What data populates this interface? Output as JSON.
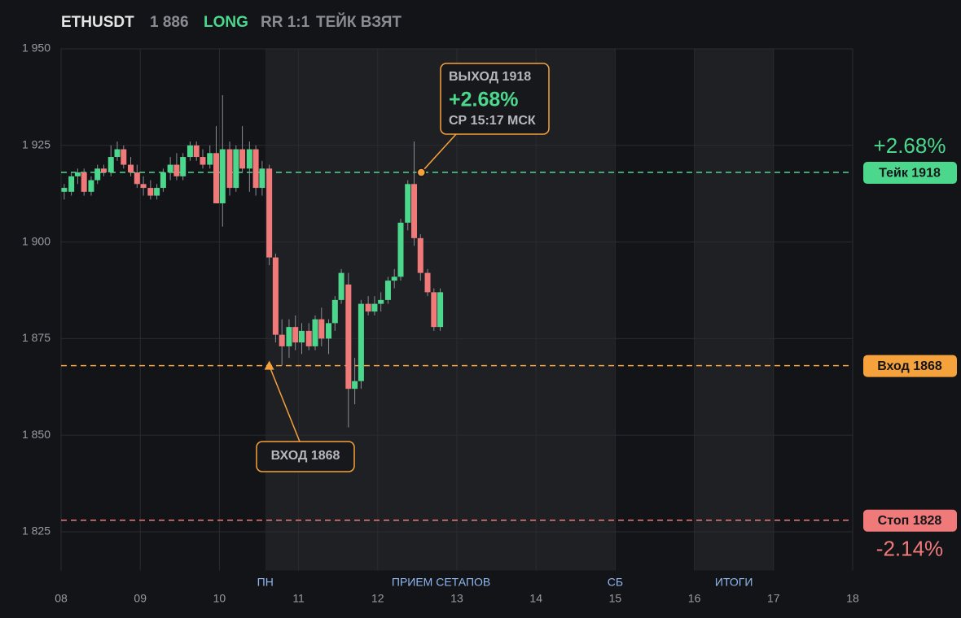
{
  "chart_data": {
    "type": "candlestick",
    "header": {
      "symbol": "ETHUSDT",
      "price": {
        "value": 1886,
        "label": "1 886"
      },
      "side": "LONG",
      "rr": "RR 1:1",
      "status": "ТЕЙК ВЗЯТ"
    },
    "x": [
      8.04,
      8.13,
      8.21,
      8.29,
      8.38,
      8.46,
      8.54,
      8.63,
      8.71,
      8.79,
      8.88,
      8.96,
      9.04,
      9.13,
      9.21,
      9.29,
      9.38,
      9.46,
      9.54,
      9.63,
      9.71,
      9.79,
      9.88,
      9.96,
      10.04,
      10.13,
      10.21,
      10.29,
      10.38,
      10.46,
      10.54,
      10.63,
      10.71,
      10.79,
      10.88,
      10.96,
      11.04,
      11.13,
      11.21,
      11.29,
      11.38,
      11.46,
      11.54,
      11.63,
      11.71,
      11.79,
      11.88,
      11.96,
      12.04,
      12.13,
      12.21,
      12.29,
      12.38,
      12.46,
      12.54,
      12.63,
      12.71,
      12.79
    ],
    "open": [
      1913,
      1913,
      1917,
      1918,
      1913,
      1916,
      1919,
      1918,
      1922,
      1924,
      1920,
      1918,
      1915,
      1914,
      1912,
      1914,
      1918,
      1920,
      1917,
      1922,
      1925,
      1922,
      1920,
      1923,
      1910,
      1924,
      1914,
      1924,
      1919,
      1924,
      1914,
      1919,
      1896,
      1876,
      1873,
      1878,
      1874,
      1877,
      1873,
      1880,
      1875,
      1879,
      1885,
      1889,
      1862,
      1864,
      1884,
      1882,
      1884,
      1885,
      1890,
      1891,
      1905,
      1915,
      1901,
      1892,
      1887,
      1878
    ],
    "high": [
      1915,
      1918,
      1919,
      1919,
      1917,
      1920,
      1920,
      1925,
      1926,
      1925,
      1922,
      1920,
      1917,
      1916,
      1915,
      1919,
      1922,
      1923,
      1923,
      1926,
      1926,
      1924,
      1925,
      1930,
      1938,
      1926,
      1925,
      1930,
      1926,
      1925,
      1921,
      1920,
      1897,
      1880,
      1880,
      1881,
      1879,
      1879,
      1881,
      1883,
      1880,
      1886,
      1893,
      1892,
      1870,
      1885,
      1886,
      1886,
      1887,
      1891,
      1893,
      1906,
      1916,
      1926,
      1902,
      1893,
      1888,
      1888
    ],
    "low": [
      1911,
      1912,
      1915,
      1912,
      1912,
      1915,
      1917,
      1917,
      1921,
      1919,
      1917,
      1914,
      1912,
      1911,
      1911,
      1913,
      1916,
      1916,
      1916,
      1921,
      1921,
      1919,
      1919,
      1910,
      1904,
      1912,
      1913,
      1918,
      1913,
      1912,
      1912,
      1894,
      1874,
      1868,
      1870,
      1872,
      1871,
      1872,
      1872,
      1873,
      1871,
      1877,
      1884,
      1852,
      1858,
      1862,
      1881,
      1881,
      1882,
      1884,
      1888,
      1890,
      1903,
      1899,
      1890,
      1886,
      1877,
      1877
    ],
    "close": [
      1914,
      1917,
      1918,
      1913,
      1916,
      1919,
      1918,
      1922,
      1924,
      1920,
      1918,
      1915,
      1914,
      1912,
      1914,
      1918,
      1920,
      1917,
      1922,
      1925,
      1922,
      1920,
      1923,
      1910,
      1924,
      1914,
      1924,
      1919,
      1924,
      1914,
      1919,
      1896,
      1876,
      1873,
      1878,
      1874,
      1877,
      1873,
      1880,
      1875,
      1879,
      1885,
      1892,
      1862,
      1864,
      1884,
      1882,
      1884,
      1885,
      1890,
      1891,
      1905,
      1915,
      1901,
      1892,
      1887,
      1878,
      1887
    ],
    "up_color": "#4cd88c",
    "down_color": "#f07a7a",
    "xlim": [
      8,
      18
    ],
    "xticks": [
      {
        "value": 8,
        "label": "08"
      },
      {
        "value": 9,
        "label": "09"
      },
      10,
      11,
      12,
      13,
      14,
      15,
      16,
      17,
      18
    ],
    "ylim": [
      1815,
      1950
    ],
    "yticks": [
      {
        "value": 1825,
        "label": "1 825"
      },
      {
        "value": 1850,
        "label": "1 850"
      },
      {
        "value": 1875,
        "label": "1 875"
      },
      {
        "value": 1900,
        "label": "1 900"
      },
      {
        "value": 1925,
        "label": "1 925"
      },
      {
        "value": 1950,
        "label": "1 950"
      }
    ],
    "grid": true,
    "bands": [
      {
        "from": 10.58,
        "to": 15
      },
      {
        "from": 16,
        "to": 17
      }
    ],
    "session_labels": [
      {
        "x": 10.58,
        "label": "ПН"
      },
      {
        "x": 12.8,
        "label": "ПРИЕМ СЕТАПОВ"
      },
      {
        "x": 15,
        "label": "СБ"
      },
      {
        "x": 16.5,
        "label": "ИТОГИ"
      }
    ],
    "levels": [
      {
        "value": 1918,
        "label": "Тейк 1918",
        "color": "#4cd88c",
        "change": {
          "value": 2.68,
          "label": "+2.68%"
        }
      },
      {
        "value": 1868,
        "label": "Вход 1868",
        "color": "#f5a13c"
      },
      {
        "value": 1828,
        "label": "Стоп 1828",
        "color": "#f07a7a",
        "change": {
          "value": -2.14,
          "label": "-2.14%"
        }
      }
    ],
    "entry": {
      "x": 10.63,
      "y": 1868,
      "label": "ВХОД 1868"
    },
    "exit": {
      "x": 12.55,
      "y": 1918,
      "label": "ВЫХОД 1918",
      "change": {
        "value": 2.68,
        "label": "+2.68%"
      },
      "time": "СР 15:17 МСК"
    }
  }
}
